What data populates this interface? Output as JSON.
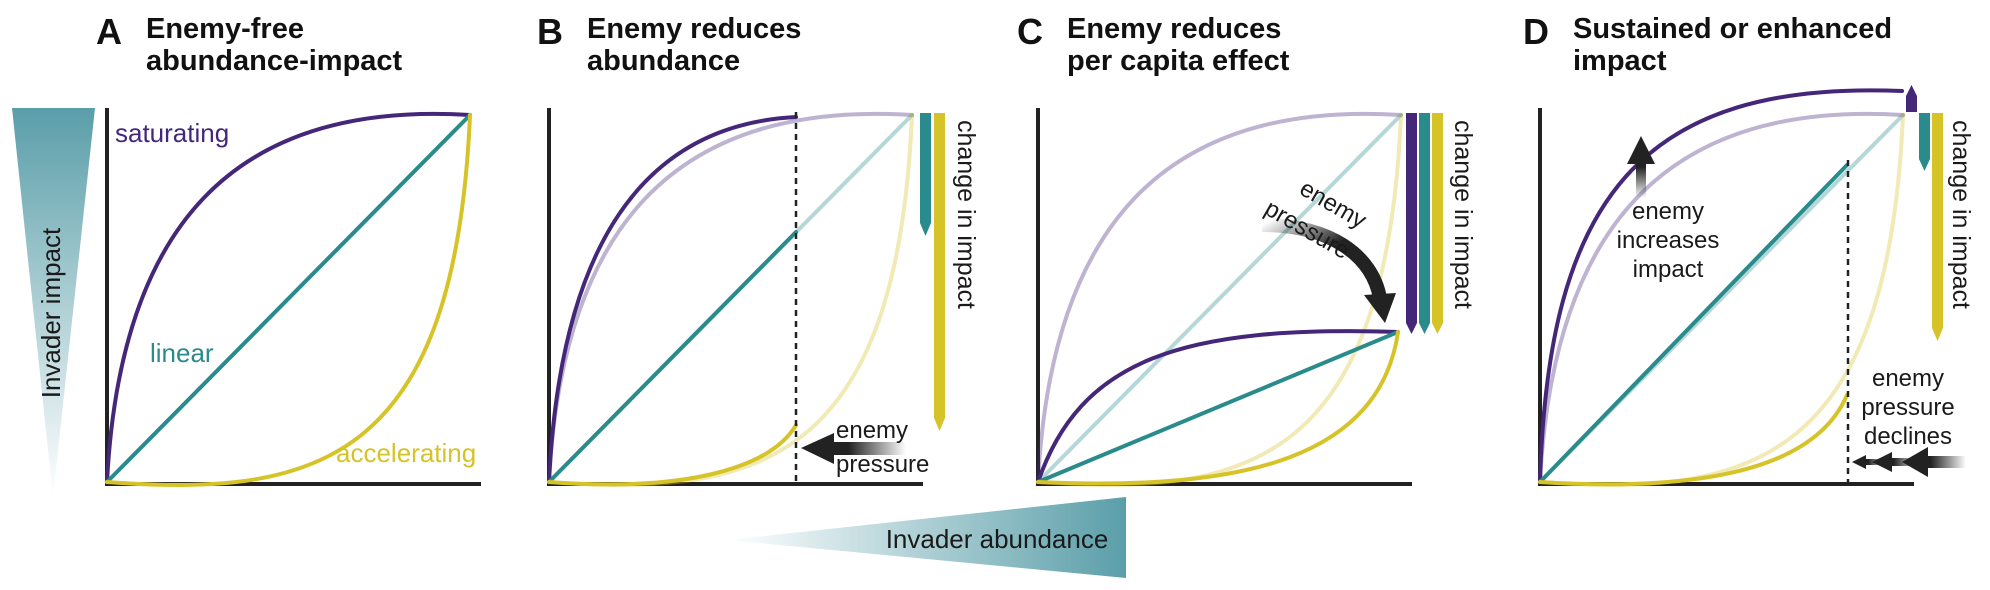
{
  "colors": {
    "saturating": "#45277a",
    "linear": "#2a8b8d",
    "accelerating": "#d6c328",
    "axis": "#222222",
    "gradient_teal": "#5a9ea9"
  },
  "axes": {
    "y_label": "Invader impact",
    "x_label": "Invader abundance"
  },
  "panels": [
    {
      "letter": "A",
      "title_line1": "Enemy-free",
      "title_line2": "abundance-impact"
    },
    {
      "letter": "B",
      "title_line1": "Enemy reduces",
      "title_line2": "abundance"
    },
    {
      "letter": "C",
      "title_line1": "Enemy reduces",
      "title_line2": "per capita effect"
    },
    {
      "letter": "D",
      "title_line1": "Sustained or enhanced",
      "title_line2": "impact"
    }
  ],
  "curve_labels": {
    "saturating": "saturating",
    "linear": "linear",
    "accelerating": "accelerating"
  },
  "annotations": {
    "change_in_impact": "change in impact",
    "b_enemy_line1": "enemy",
    "b_enemy_line2": "pressure",
    "c_enemy_line1": "enemy",
    "c_enemy_line2": "pressure",
    "d_increase_line1": "enemy",
    "d_increase_line2": "increases",
    "d_increase_line3": "impact",
    "d_decline_line1": "enemy",
    "d_decline_line2": "pressure",
    "d_decline_line3": "declines"
  }
}
